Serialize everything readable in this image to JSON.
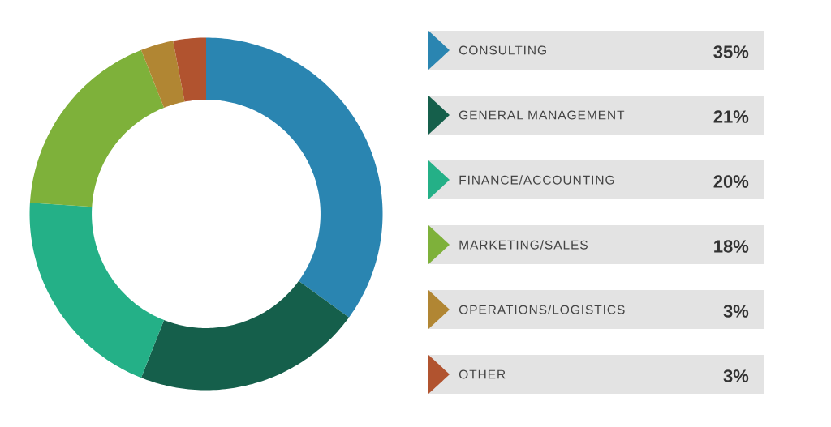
{
  "chart_data": {
    "type": "donut",
    "categories": [
      "CONSULTING",
      "GENERAL MANAGEMENT",
      "FINANCE/ACCOUNTING",
      "MARKETING/SALES",
      "OPERATIONS/LOGISTICS",
      "OTHER"
    ],
    "values": [
      35,
      21,
      20,
      18,
      3,
      3
    ],
    "value_labels": [
      "35%",
      "21%",
      "20%",
      "18%",
      "3%",
      "3%"
    ],
    "colors": [
      "#2a85b1",
      "#155f4b",
      "#24b087",
      "#7eb13a",
      "#b18633",
      "#b1532f"
    ],
    "legend": "right"
  }
}
